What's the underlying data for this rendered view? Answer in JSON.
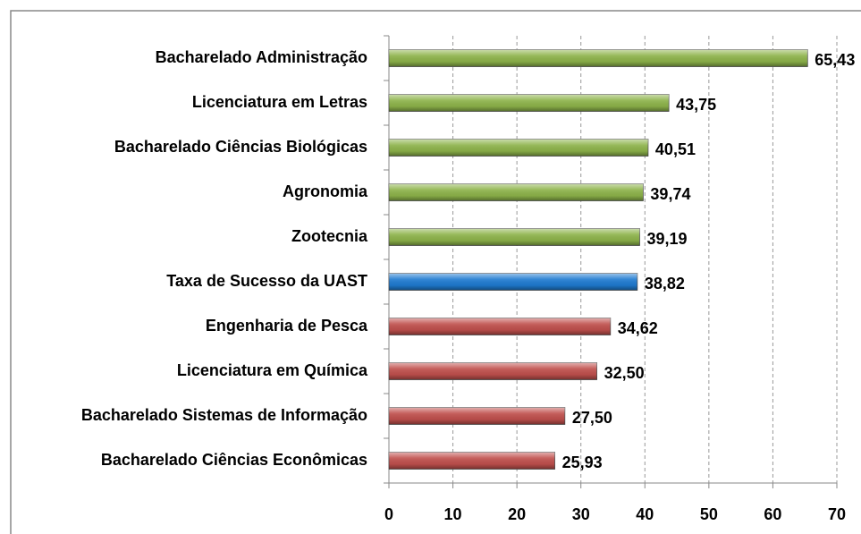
{
  "chart_data": {
    "type": "bar",
    "orientation": "horizontal",
    "categories": [
      "Bacharelado Administração",
      "Licenciatura em Letras",
      "Bacharelado Ciências Biológicas",
      "Agronomia",
      "Zootecnia",
      "Taxa de Sucesso da UAST",
      "Engenharia de Pesca",
      "Licenciatura em Química",
      "Bacharelado Sistemas de Informação",
      "Bacharelado Ciências Econômicas"
    ],
    "values": [
      65.43,
      43.75,
      40.51,
      39.74,
      39.19,
      38.82,
      34.62,
      32.5,
      27.5,
      25.93
    ],
    "value_labels": [
      "65,43",
      "43,75",
      "40,51",
      "39,74",
      "39,19",
      "38,82",
      "34,62",
      "32,50",
      "27,50",
      "25,93"
    ],
    "colors": [
      "#8db34a",
      "#8db34a",
      "#8db34a",
      "#8db34a",
      "#8db34a",
      "#1f7bd1",
      "#c0504d",
      "#c0504d",
      "#c0504d",
      "#c0504d"
    ],
    "xlim": [
      0,
      70
    ],
    "xticks": [
      0,
      10,
      20,
      30,
      40,
      50,
      60,
      70
    ],
    "grid": true
  }
}
